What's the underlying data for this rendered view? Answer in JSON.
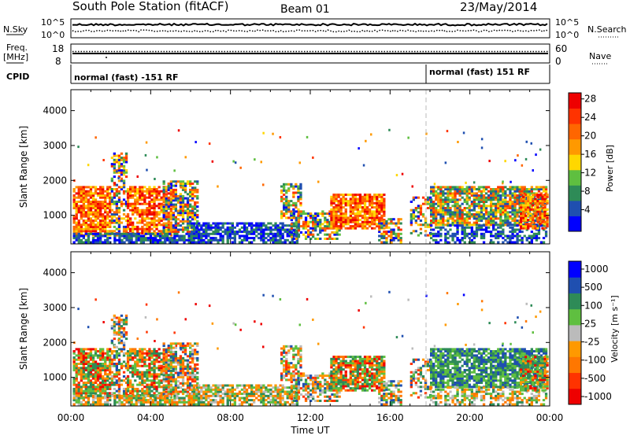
{
  "header": {
    "station": "South Pole Station (fitACF)",
    "beam": "Beam 01",
    "date": "23/May/2014"
  },
  "noise_panel": {
    "left_label": "N.Sky",
    "right_label": "N.Search",
    "left_ticks": [
      "10^5",
      "10^0"
    ],
    "right_ticks": [
      "10^5",
      "10^0"
    ]
  },
  "freq_panel": {
    "left_label": "Freq.",
    "left_unit": "[MHz]",
    "left_ticks": [
      "18",
      "8"
    ],
    "right_label": "Nave",
    "right_ticks": [
      "60",
      "0"
    ]
  },
  "cpid_panel": {
    "label": "CPID",
    "segments": [
      {
        "text": "normal (fast) -151 RF",
        "start_hour": 0
      },
      {
        "text": "normal (fast) 151 RF",
        "start_hour": 18
      }
    ]
  },
  "colors": {
    "power": [
      "#0000ff",
      "#1f4fb0",
      "#2e8b57",
      "#5fbf40",
      "#ffd700",
      "#ff9900",
      "#ff6600",
      "#ff3300",
      "#ee0000"
    ],
    "velocity": [
      "#ee0000",
      "#ff3300",
      "#ff7700",
      "#ff9900",
      "#bbbbbb",
      "#5fbf40",
      "#2e8b57",
      "#1f4fb0",
      "#0000ff"
    ]
  },
  "chart_data": [
    {
      "type": "heatmap",
      "name": "power",
      "ylabel": "Slant Range [km]",
      "ylim": [
        180,
        4600
      ],
      "yticks": [
        1000,
        2000,
        3000,
        4000
      ],
      "xlim": [
        0,
        24
      ],
      "colorbar": {
        "label": "Power [dB]",
        "range": [
          0,
          30
        ],
        "ticks": [
          4,
          8,
          12,
          16,
          20,
          24,
          28
        ]
      }
    },
    {
      "type": "heatmap",
      "name": "velocity",
      "ylabel": "Slant Range [km]",
      "ylim": [
        180,
        4600
      ],
      "yticks": [
        1000,
        2000,
        3000,
        4000
      ],
      "xlim": [
        0,
        24
      ],
      "xlabel": "Time UT",
      "xticks": [
        "00:00",
        "04:00",
        "08:00",
        "12:00",
        "16:00",
        "20:00",
        "00:00"
      ],
      "colorbar": {
        "label": "Velocity [m s⁻¹]",
        "ticks": [
          "1000",
          "500",
          "100",
          "25",
          "-25",
          "-100",
          "-500",
          "-1000"
        ]
      }
    }
  ]
}
